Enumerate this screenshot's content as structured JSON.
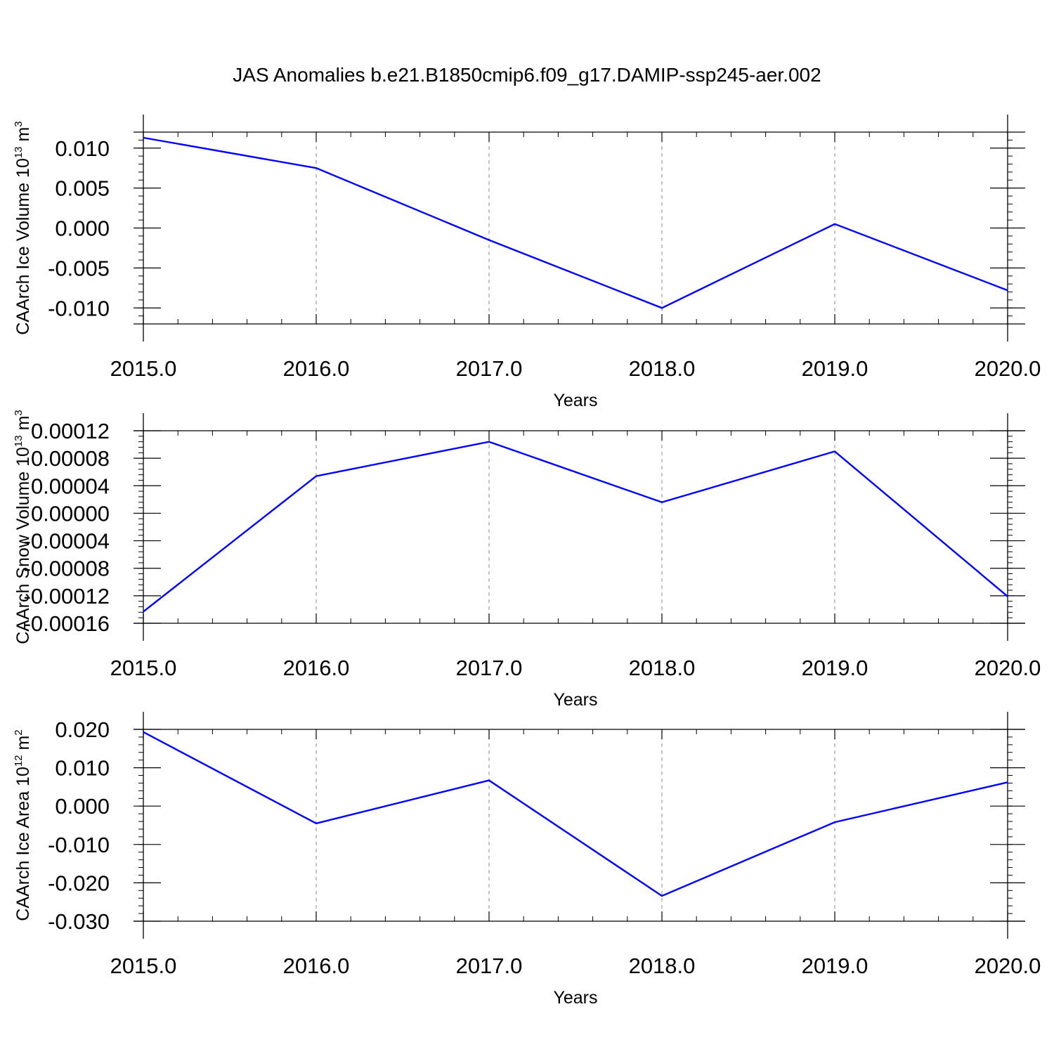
{
  "title": "JAS Anomalies b.e21.B1850cmip6.f09_g17.DAMIP-ssp245-aer.002",
  "colors": {
    "line": "#0000ff",
    "frame": "#000000",
    "grid": "#8a8a8a"
  },
  "chart_data": [
    {
      "type": "line",
      "xlabel": "Years",
      "ylabel": {
        "text": "CAArch Ice Volume 10",
        "sup": "13",
        "unit": " m",
        "unit_sup": "3"
      },
      "xlim": [
        2015,
        2020
      ],
      "ylim": [
        -0.012,
        0.012
      ],
      "x_ticks": [
        2015,
        2016,
        2017,
        2018,
        2019,
        2020
      ],
      "x_tick_labels": [
        "2015.0",
        "2016.0",
        "2017.0",
        "2018.0",
        "2019.0",
        "2020.0"
      ],
      "y_ticks": [
        0.01,
        0.005,
        0.0,
        -0.005,
        -0.01
      ],
      "y_tick_labels": [
        "0.010",
        "0.005",
        "0.000",
        "-0.005",
        "-0.010"
      ],
      "x_grid": true,
      "series": [
        {
          "x": [
            2015,
            2016,
            2017,
            2018,
            2019,
            2020
          ],
          "values": [
            0.0113,
            0.0075,
            -0.0015,
            -0.01,
            0.0005,
            -0.0078
          ]
        }
      ]
    },
    {
      "type": "line",
      "xlabel": "Years",
      "ylabel": {
        "text": "CAArch Snow Volume 10",
        "sup": "13",
        "unit": " m",
        "unit_sup": "3"
      },
      "xlim": [
        2015,
        2020
      ],
      "ylim": [
        -0.00016,
        0.00012
      ],
      "x_ticks": [
        2015,
        2016,
        2017,
        2018,
        2019,
        2020
      ],
      "x_tick_labels": [
        "2015.0",
        "2016.0",
        "2017.0",
        "2018.0",
        "2019.0",
        "2020.0"
      ],
      "y_ticks": [
        0.00012,
        8e-05,
        4e-05,
        0.0,
        -4e-05,
        -8e-05,
        -0.00012,
        -0.00016
      ],
      "y_tick_labels": [
        "0.00012",
        "0.00008",
        "0.00004",
        "0.00000",
        "-0.00004",
        "-0.00008",
        "-0.00012",
        "-0.00016"
      ],
      "x_grid": true,
      "series": [
        {
          "x": [
            2015,
            2016,
            2017,
            2018,
            2019,
            2020
          ],
          "values": [
            -0.000143,
            5.4e-05,
            0.000104,
            1.6e-05,
            9e-05,
            -0.000121
          ]
        }
      ]
    },
    {
      "type": "line",
      "xlabel": "Years",
      "ylabel": {
        "text": "CAArch Ice Area 10",
        "sup": "12",
        "unit": " m",
        "unit_sup": "2"
      },
      "xlim": [
        2015,
        2020
      ],
      "ylim": [
        -0.03,
        0.02
      ],
      "x_ticks": [
        2015,
        2016,
        2017,
        2018,
        2019,
        2020
      ],
      "x_tick_labels": [
        "2015.0",
        "2016.0",
        "2017.0",
        "2018.0",
        "2019.0",
        "2020.0"
      ],
      "y_ticks": [
        0.02,
        0.01,
        0.0,
        -0.01,
        -0.02,
        -0.03
      ],
      "y_tick_labels": [
        "0.020",
        "0.010",
        "0.000",
        "-0.010",
        "-0.020",
        "-0.030"
      ],
      "x_grid": true,
      "series": [
        {
          "x": [
            2015,
            2016,
            2017,
            2018,
            2019,
            2020
          ],
          "values": [
            0.0193,
            -0.0045,
            0.0067,
            -0.0234,
            -0.0042,
            0.0062
          ]
        }
      ]
    }
  ]
}
